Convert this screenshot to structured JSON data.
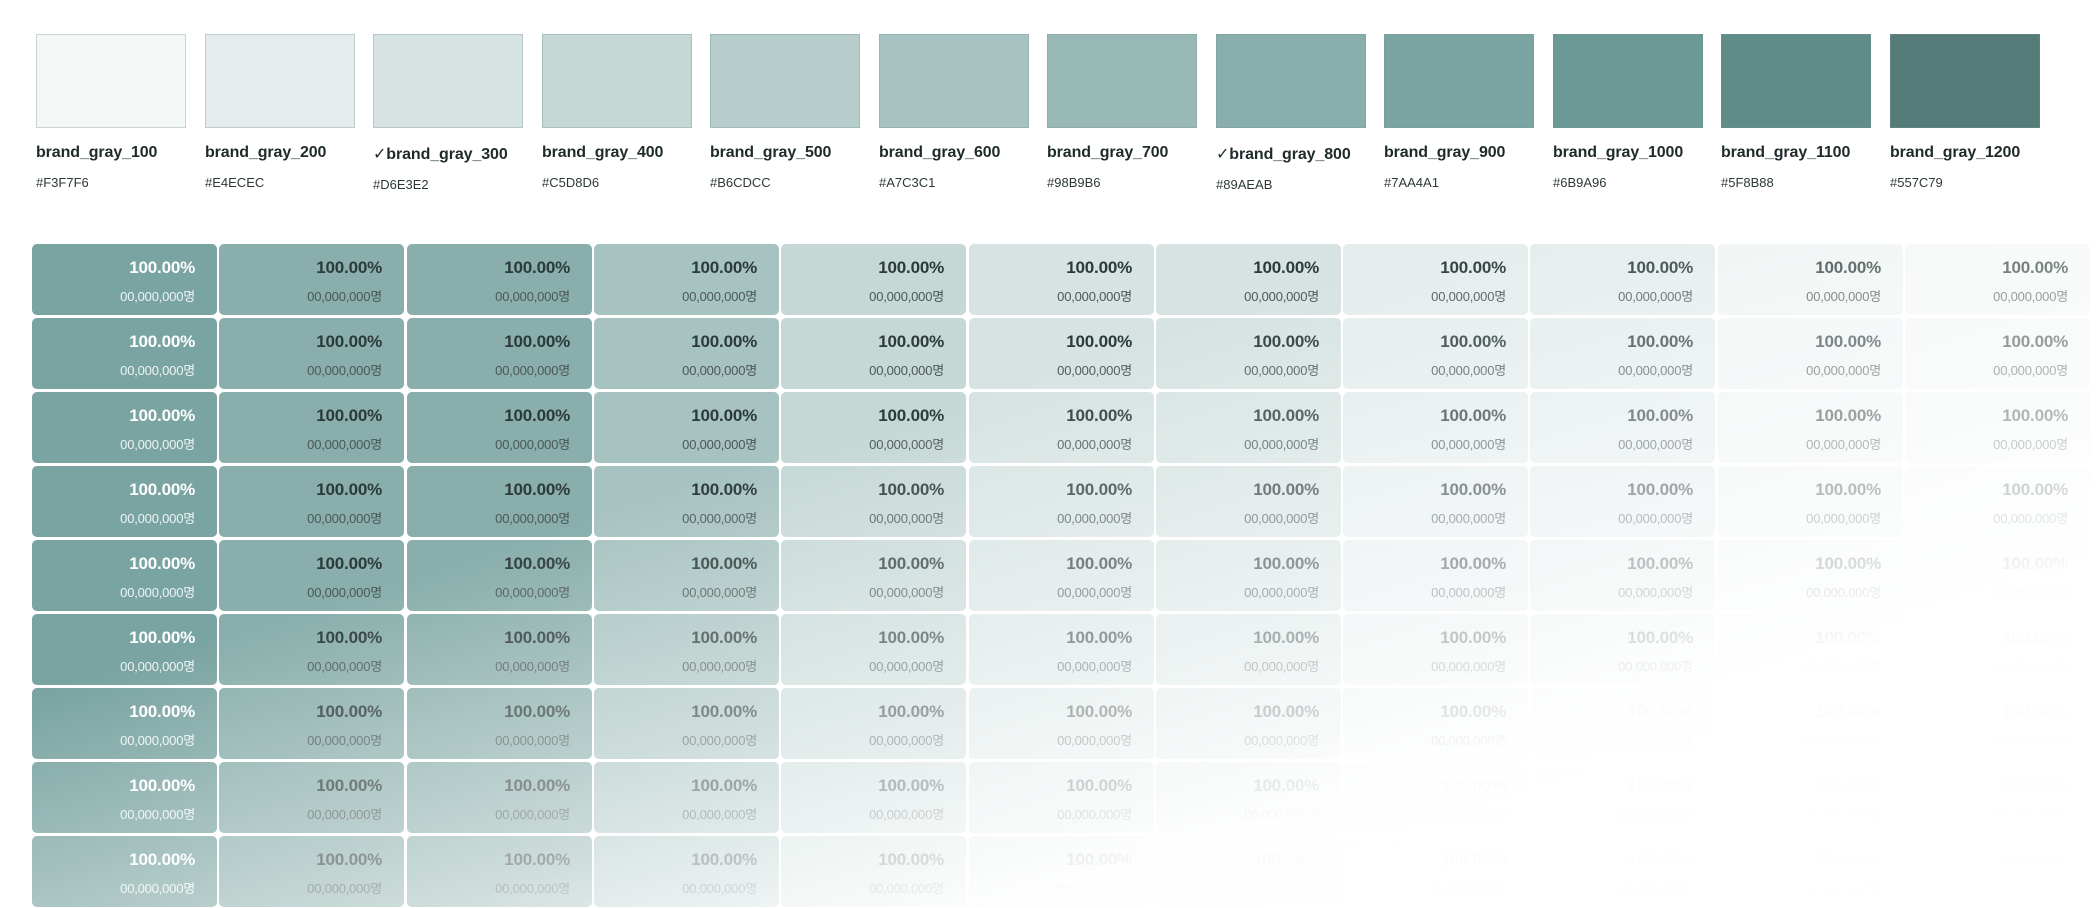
{
  "palette": [
    {
      "name": "brand_gray_100",
      "hex": "#F3F7F6",
      "color": "#F3F7F6"
    },
    {
      "name": "brand_gray_200",
      "hex": "#E4ECEC",
      "color": "#E4ECEC"
    },
    {
      "name": "✓brand_gray_300",
      "hex": "#D6E3E2",
      "color": "#D6E3E2"
    },
    {
      "name": "brand_gray_400",
      "hex": "#C5D8D6",
      "color": "#C5D8D6"
    },
    {
      "name": "brand_gray_500",
      "hex": "#B6CDCC",
      "color": "#B6CDCC"
    },
    {
      "name": "brand_gray_600",
      "hex": "#A7C3C1",
      "color": "#A7C3C1"
    },
    {
      "name": "brand_gray_700",
      "hex": "#98B9B6",
      "color": "#98B9B6"
    },
    {
      "name": "✓brand_gray_800",
      "hex": "#89AEAB",
      "color": "#89AEAB"
    },
    {
      "name": "brand_gray_900",
      "hex": "#7AA4A1",
      "color": "#7AA4A1"
    },
    {
      "name": "brand_gray_1000",
      "hex": "#6B9A96",
      "color": "#6B9A96"
    },
    {
      "name": "brand_gray_1100",
      "hex": "#5F8B88",
      "color": "#5F8B88"
    },
    {
      "name": "brand_gray_1200",
      "hex": "#557C79",
      "color": "#557C79"
    }
  ],
  "grid": {
    "columns": 11,
    "rows": 9,
    "percent_text": "100.00%",
    "count_text": "00,000,000명",
    "column_colors": [
      "#7AA4A1",
      "#89AEAB",
      "#89AEAB",
      "#A7C3C1",
      "#C5D8D6",
      "#D6E3E2",
      "#D6E3E2",
      "#E4ECEC",
      "#E4ECEC",
      "#EEF4F3",
      "#F3F7F6"
    ]
  }
}
